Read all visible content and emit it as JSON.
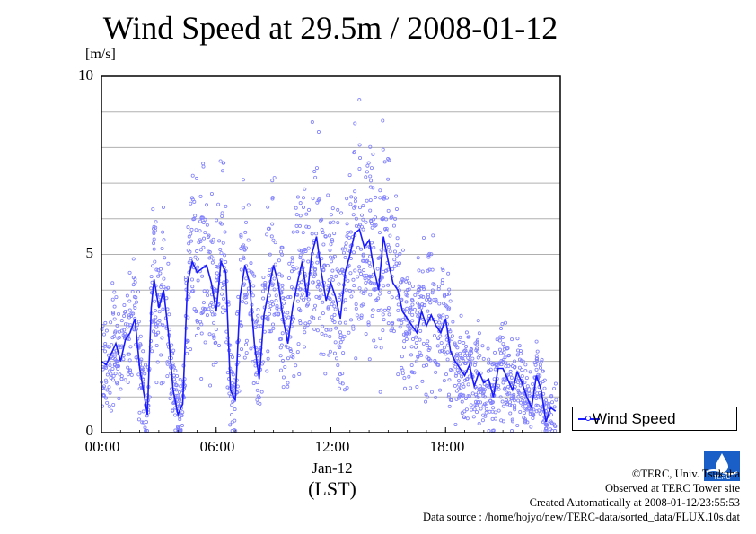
{
  "chart_data": {
    "type": "scatter+line",
    "title": "Wind Speed at 29.5m / 2008-01-12",
    "ylabel": "[m/s]",
    "xlabel": "(LST)",
    "date_label": "Jan-12",
    "ylim": [
      0,
      10
    ],
    "yticks": [
      "0",
      "5",
      "10"
    ],
    "xlim_hours": [
      0,
      24
    ],
    "xticks": [
      {
        "hour": 0,
        "label": "00:00"
      },
      {
        "hour": 6,
        "label": "06:00"
      },
      {
        "hour": 12,
        "label": "12:00"
      },
      {
        "hour": 18,
        "label": "18:00"
      }
    ],
    "grid": true,
    "legend": {
      "label": "Wind Speed",
      "placement": "right"
    },
    "series_color": "#1a1aff",
    "point_color": "#8080ff",
    "series": [
      {
        "name": "Wind Speed",
        "x_hours": [
          0.0,
          0.25,
          0.5,
          0.75,
          1.0,
          1.25,
          1.5,
          1.75,
          2.0,
          2.25,
          2.4,
          2.6,
          2.75,
          3.0,
          3.25,
          3.5,
          3.75,
          4.0,
          4.25,
          4.5,
          4.75,
          5.0,
          5.25,
          5.5,
          5.75,
          6.0,
          6.25,
          6.5,
          6.75,
          7.0,
          7.25,
          7.5,
          7.75,
          8.0,
          8.25,
          8.5,
          8.75,
          9.0,
          9.25,
          9.5,
          9.75,
          10.0,
          10.25,
          10.5,
          10.75,
          11.0,
          11.25,
          11.5,
          11.75,
          12.0,
          12.25,
          12.5,
          12.75,
          13.0,
          13.25,
          13.5,
          13.75,
          14.0,
          14.25,
          14.5,
          14.75,
          15.0,
          15.25,
          15.5,
          15.75,
          16.0,
          16.25,
          16.5,
          16.75,
          17.0,
          17.25,
          17.5,
          17.75,
          18.0,
          18.25,
          18.5,
          18.75,
          19.0,
          19.25,
          19.5,
          19.75,
          20.0,
          20.25,
          20.5,
          20.75,
          21.0,
          21.25,
          21.5,
          21.75,
          22.0,
          22.25,
          22.5,
          22.75,
          23.0,
          23.25,
          23.5,
          23.75
        ],
        "values": [
          2.0,
          1.9,
          2.2,
          2.5,
          2.0,
          2.6,
          2.8,
          3.2,
          1.8,
          1.0,
          0.5,
          3.5,
          4.3,
          3.5,
          4.0,
          2.8,
          1.2,
          0.5,
          0.8,
          4.2,
          4.8,
          4.5,
          4.6,
          4.7,
          4.2,
          3.4,
          4.8,
          4.5,
          1.2,
          0.9,
          3.8,
          4.7,
          4.2,
          2.5,
          1.5,
          3.3,
          4.0,
          4.7,
          4.2,
          3.2,
          2.5,
          3.5,
          4.2,
          4.8,
          3.8,
          5.0,
          5.5,
          4.5,
          3.7,
          4.2,
          3.8,
          3.2,
          4.5,
          5.0,
          5.6,
          5.7,
          5.2,
          5.4,
          4.6,
          4.0,
          5.5,
          4.8,
          4.2,
          4.0,
          3.4,
          3.2,
          3.0,
          2.8,
          3.4,
          3.0,
          3.3,
          3.0,
          2.8,
          3.2,
          2.3,
          2.0,
          1.8,
          1.6,
          1.9,
          1.3,
          1.7,
          1.4,
          1.5,
          1.0,
          1.8,
          1.8,
          1.5,
          1.2,
          1.7,
          1.4,
          1.0,
          0.7,
          1.6,
          1.2,
          0.3,
          0.7,
          0.6
        ]
      }
    ]
  },
  "credits": {
    "line1": "©TERC, Univ. Tsukuba",
    "line2": "Observed at TERC Tower site",
    "line3": "Created Automatically at 2008-01-12/23:55:53",
    "line4": "Data source : /home/hojyo/new/TERC-data/sorted_data/FLUX.10s.dat"
  },
  "logo": {
    "text": "TERC",
    "icon": "terc-logo-icon"
  }
}
